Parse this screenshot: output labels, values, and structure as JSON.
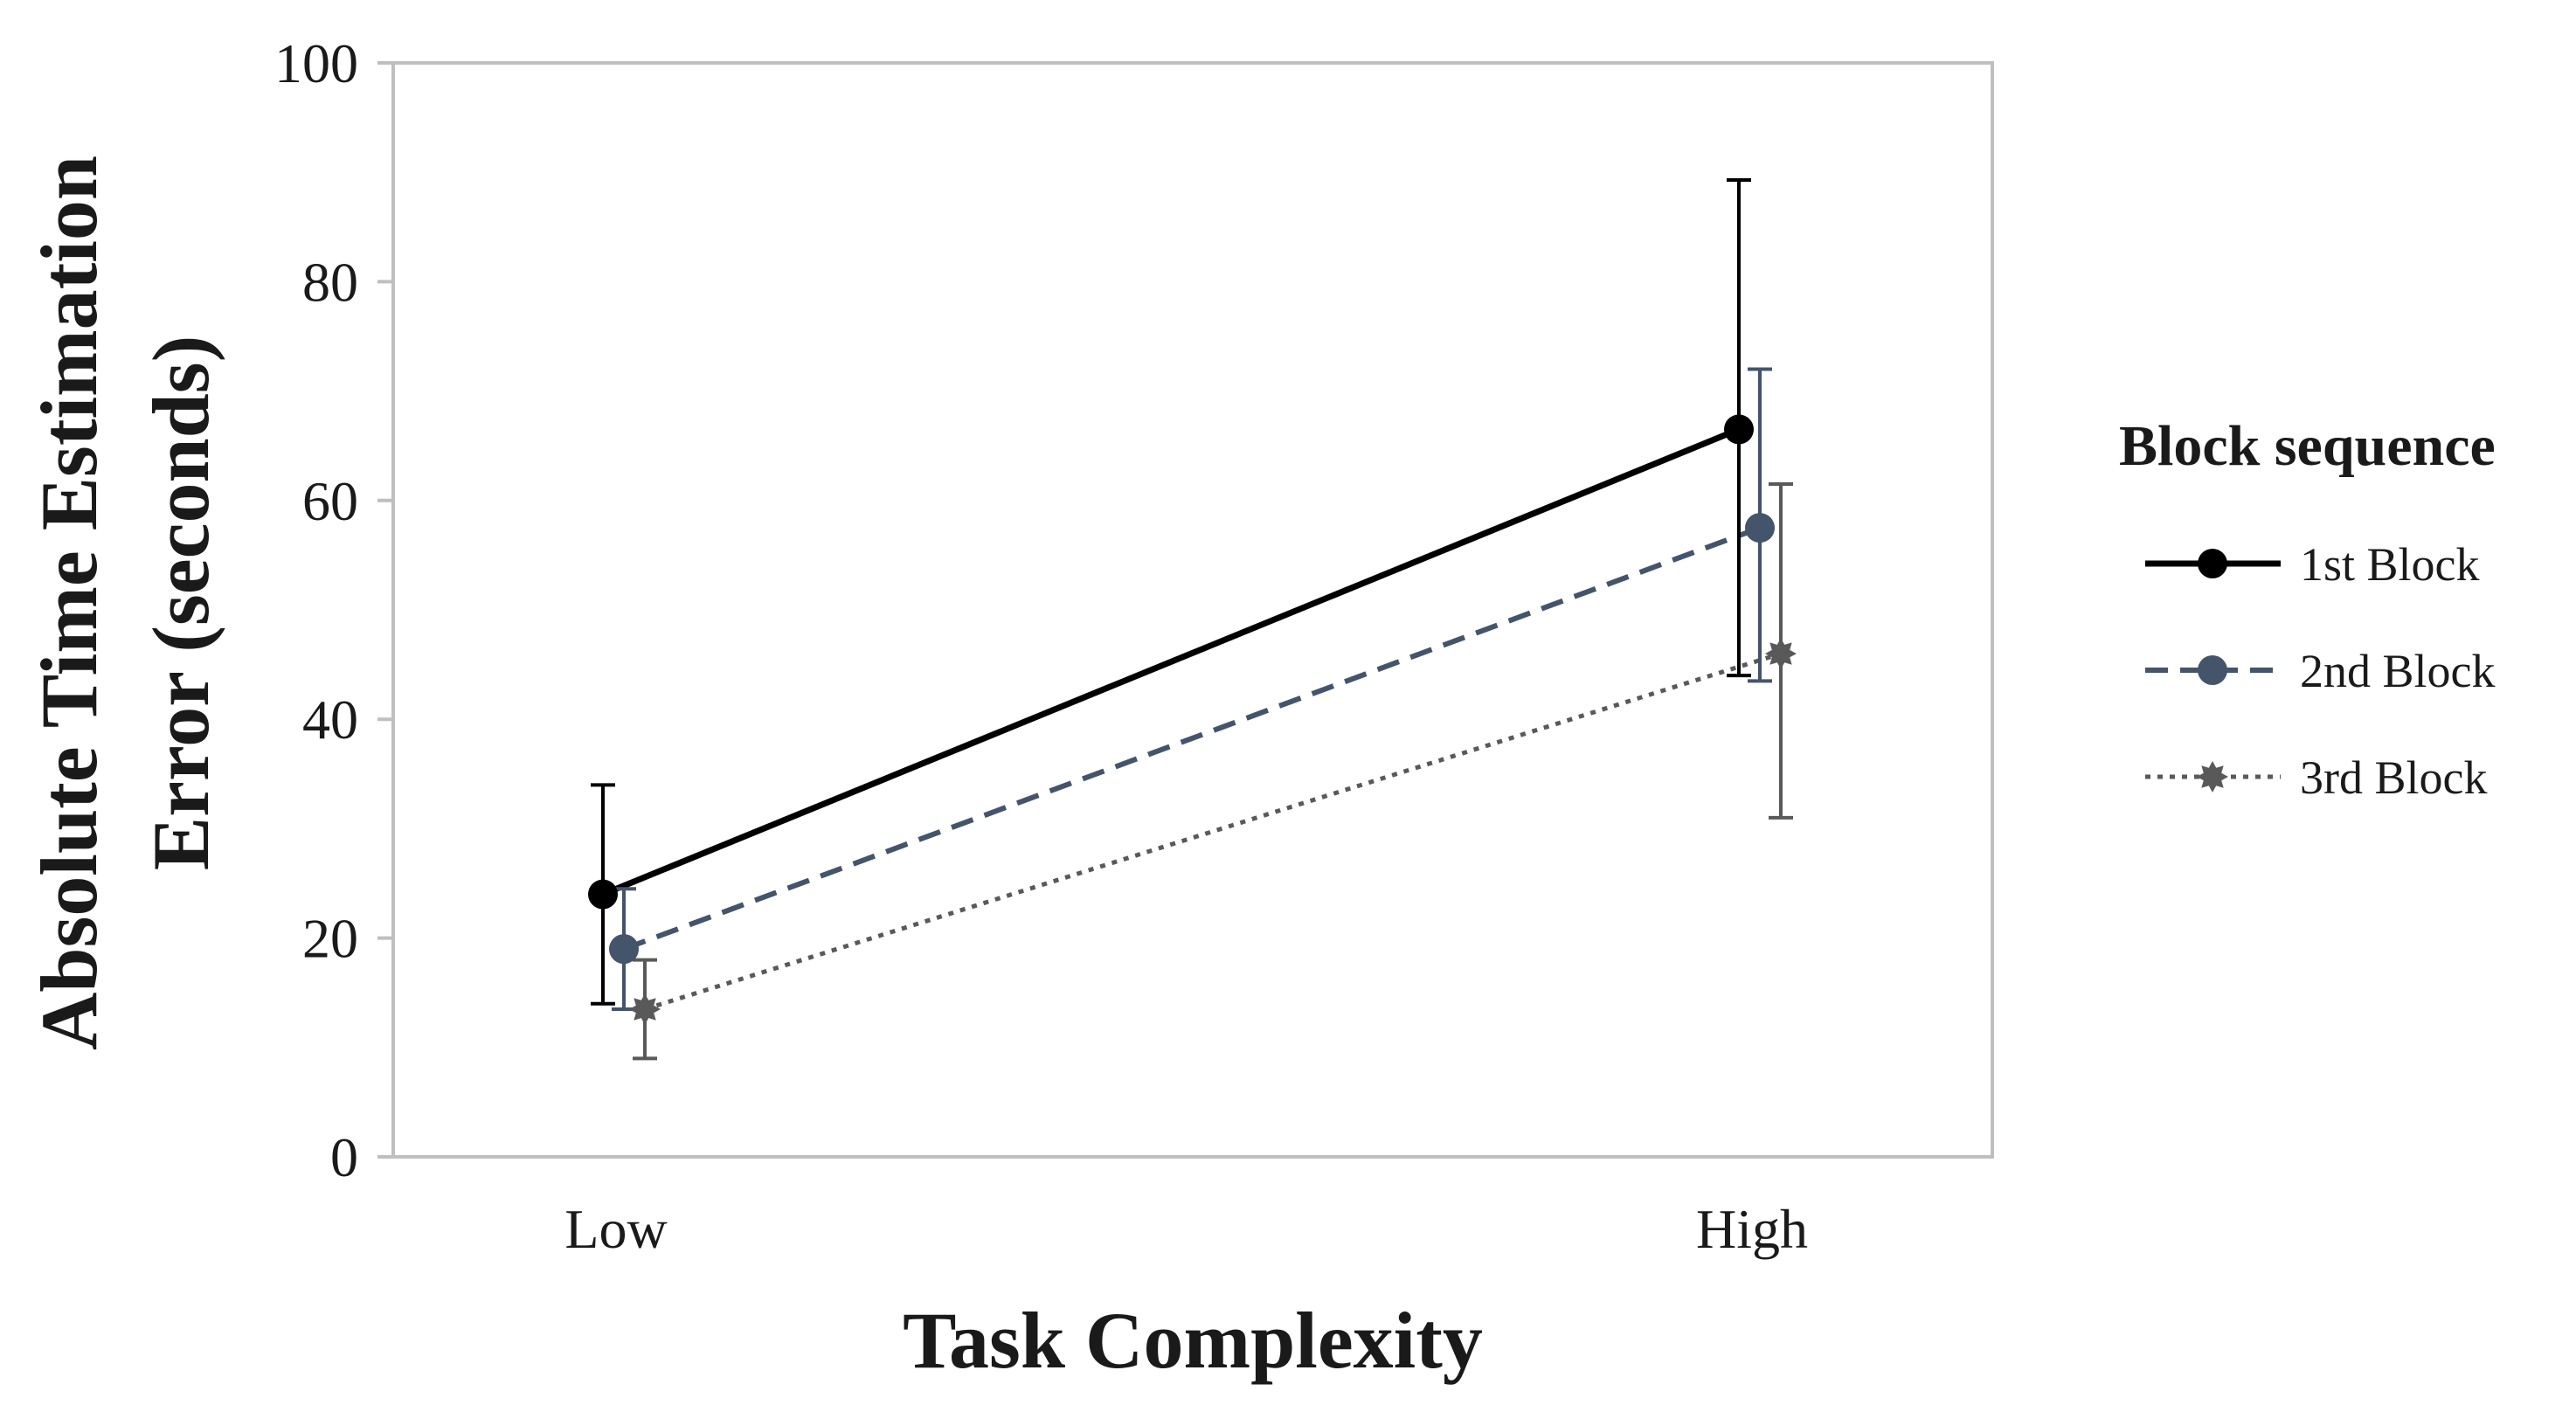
{
  "chart_data": {
    "type": "line",
    "xlabel": "Task Complexity",
    "ylabel_line1": "Absolute Time Estimation",
    "ylabel_line2": "Error (seconds)",
    "categories": [
      "Low",
      "High"
    ],
    "ylim": [
      0,
      100
    ],
    "yticks": [
      0,
      20,
      40,
      60,
      80,
      100
    ],
    "grid": false,
    "legend": {
      "title": "Block sequence",
      "placement": "right"
    },
    "series": [
      {
        "name": "1st Block",
        "values": [
          24,
          66.5
        ],
        "error_low": [
          14,
          44
        ],
        "error_high": [
          34,
          89.3
        ],
        "color": "#000000",
        "dash": "solid",
        "marker": "circle"
      },
      {
        "name": "2nd Block",
        "values": [
          19,
          57.5
        ],
        "error_low": [
          13.5,
          43.5
        ],
        "error_high": [
          24.5,
          72
        ],
        "color": "#44546a",
        "dash": "dashed",
        "marker": "circle"
      },
      {
        "name": "3rd Block",
        "values": [
          13.5,
          46
        ],
        "error_low": [
          9,
          31
        ],
        "error_high": [
          18,
          61.5
        ],
        "color": "#595959",
        "dash": "dotted",
        "marker": "star"
      }
    ]
  }
}
